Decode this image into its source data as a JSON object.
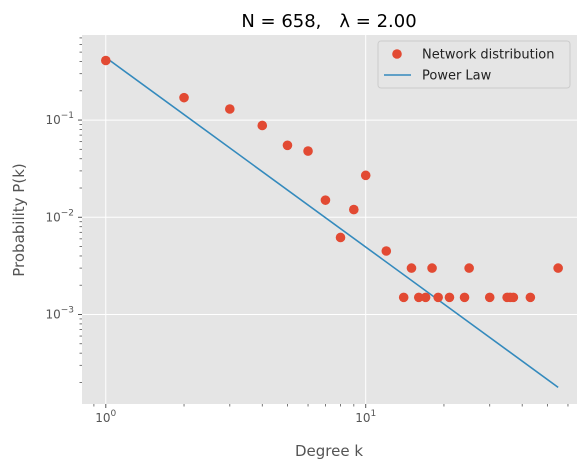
{
  "chart_data": {
    "type": "scatter",
    "title": {
      "n_label": "N = 658,",
      "lambda_label": "λ = 2.00"
    },
    "xlabel": "Degree k",
    "ylabel": "Probability P(k)",
    "xscale": "log",
    "yscale": "log",
    "xlim": [
      0.81,
      65
    ],
    "ylim": [
      0.00012,
      0.75
    ],
    "grid": true,
    "legend_position": "top-right",
    "x_ticks": [
      {
        "value": 1,
        "base": "10",
        "exp": "0"
      },
      {
        "value": 10,
        "base": "10",
        "exp": "1"
      }
    ],
    "y_ticks": [
      {
        "value": 0.001,
        "base": "10",
        "exp": "−3"
      },
      {
        "value": 0.01,
        "base": "10",
        "exp": "−2"
      },
      {
        "value": 0.1,
        "base": "10",
        "exp": "−1"
      }
    ],
    "series": [
      {
        "name": "Network distribution",
        "kind": "points",
        "color": "#E24A33",
        "points": [
          {
            "x": 1,
            "y": 0.41
          },
          {
            "x": 2,
            "y": 0.17
          },
          {
            "x": 3,
            "y": 0.13
          },
          {
            "x": 4,
            "y": 0.088
          },
          {
            "x": 5,
            "y": 0.055
          },
          {
            "x": 6,
            "y": 0.048
          },
          {
            "x": 7,
            "y": 0.015
          },
          {
            "x": 8,
            "y": 0.0062
          },
          {
            "x": 9,
            "y": 0.012
          },
          {
            "x": 10,
            "y": 0.027
          },
          {
            "x": 12,
            "y": 0.0045
          },
          {
            "x": 14,
            "y": 0.0015
          },
          {
            "x": 15,
            "y": 0.003
          },
          {
            "x": 16,
            "y": 0.0015
          },
          {
            "x": 17,
            "y": 0.0015
          },
          {
            "x": 18,
            "y": 0.003
          },
          {
            "x": 19,
            "y": 0.0015
          },
          {
            "x": 21,
            "y": 0.0015
          },
          {
            "x": 24,
            "y": 0.0015
          },
          {
            "x": 25,
            "y": 0.003
          },
          {
            "x": 30,
            "y": 0.0015
          },
          {
            "x": 35,
            "y": 0.0015
          },
          {
            "x": 36,
            "y": 0.0015
          },
          {
            "x": 37,
            "y": 0.0015
          },
          {
            "x": 43,
            "y": 0.0015
          },
          {
            "x": 55,
            "y": 0.003
          }
        ]
      },
      {
        "name": "Power Law",
        "kind": "line",
        "color": "#348ABD",
        "points": [
          {
            "x": 1,
            "y": 0.44
          },
          {
            "x": 55,
            "y": 0.000178
          }
        ]
      }
    ]
  }
}
